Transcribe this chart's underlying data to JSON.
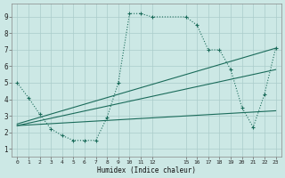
{
  "xlabel": "Humidex (Indice chaleur)",
  "bg_color": "#cce8e5",
  "grid_color": "#aaccca",
  "line_color": "#1a6b5a",
  "xlim": [
    -0.5,
    23.5
  ],
  "ylim": [
    0.5,
    9.8
  ],
  "xticks": [
    0,
    1,
    2,
    3,
    4,
    5,
    6,
    7,
    8,
    9,
    10,
    11,
    12,
    15,
    16,
    17,
    18,
    19,
    20,
    21,
    22,
    23
  ],
  "yticks": [
    1,
    2,
    3,
    4,
    5,
    6,
    7,
    8,
    9
  ],
  "main_x": [
    0,
    1,
    2,
    3,
    4,
    5,
    6,
    7,
    8,
    9,
    10,
    11,
    12,
    15,
    16,
    17,
    18,
    19,
    20,
    21,
    22,
    23
  ],
  "main_y": [
    5.0,
    4.1,
    3.1,
    2.2,
    1.8,
    1.5,
    1.5,
    1.5,
    2.9,
    5.0,
    9.2,
    9.2,
    9.0,
    9.0,
    8.5,
    7.0,
    7.0,
    5.8,
    3.5,
    2.3,
    4.3,
    7.1
  ],
  "line1_x": [
    0,
    23
  ],
  "line1_y": [
    2.4,
    3.3
  ],
  "line2_x": [
    0,
    23
  ],
  "line2_y": [
    2.4,
    5.8
  ],
  "line3_x": [
    0,
    23
  ],
  "line3_y": [
    2.5,
    7.1
  ]
}
